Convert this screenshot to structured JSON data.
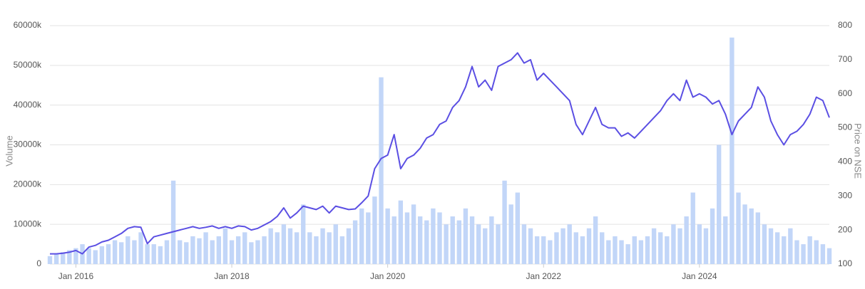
{
  "chart_data": {
    "type": "bar-line",
    "x": [
      "2015-09",
      "2015-10",
      "2015-11",
      "2015-12",
      "2016-01",
      "2016-02",
      "2016-03",
      "2016-04",
      "2016-05",
      "2016-06",
      "2016-07",
      "2016-08",
      "2016-09",
      "2016-10",
      "2016-11",
      "2016-12",
      "2017-01",
      "2017-02",
      "2017-03",
      "2017-04",
      "2017-05",
      "2017-06",
      "2017-07",
      "2017-08",
      "2017-09",
      "2017-10",
      "2017-11",
      "2017-12",
      "2018-01",
      "2018-02",
      "2018-03",
      "2018-04",
      "2018-05",
      "2018-06",
      "2018-07",
      "2018-08",
      "2018-09",
      "2018-10",
      "2018-11",
      "2018-12",
      "2019-01",
      "2019-02",
      "2019-03",
      "2019-04",
      "2019-05",
      "2019-06",
      "2019-07",
      "2019-08",
      "2019-09",
      "2019-10",
      "2019-11",
      "2019-12",
      "2020-01",
      "2020-02",
      "2020-03",
      "2020-04",
      "2020-05",
      "2020-06",
      "2020-07",
      "2020-08",
      "2020-09",
      "2020-10",
      "2020-11",
      "2020-12",
      "2021-01",
      "2021-02",
      "2021-03",
      "2021-04",
      "2021-05",
      "2021-06",
      "2021-07",
      "2021-08",
      "2021-09",
      "2021-10",
      "2021-11",
      "2021-12",
      "2022-01",
      "2022-02",
      "2022-03",
      "2022-04",
      "2022-05",
      "2022-06",
      "2022-07",
      "2022-08",
      "2022-09",
      "2022-10",
      "2022-11",
      "2022-12",
      "2023-01",
      "2023-02",
      "2023-03",
      "2023-04",
      "2023-05",
      "2023-06",
      "2023-07",
      "2023-08",
      "2023-09",
      "2023-10",
      "2023-11",
      "2023-12",
      "2024-01",
      "2024-02",
      "2024-03",
      "2024-04",
      "2024-05",
      "2024-06",
      "2024-07",
      "2024-08",
      "2024-09",
      "2024-10",
      "2024-11",
      "2024-12",
      "2025-01",
      "2025-02",
      "2025-03",
      "2025-04",
      "2025-05",
      "2025-06",
      "2025-07",
      "2025-08",
      "2025-09"
    ],
    "series": [
      {
        "name": "Volume",
        "type": "bar",
        "color": "#c2d6f8",
        "values": [
          2000,
          2500,
          3000,
          3500,
          4000,
          5000,
          4000,
          3500,
          4500,
          5000,
          6000,
          5500,
          7000,
          6000,
          8000,
          5000,
          5000,
          4500,
          6000,
          21000,
          6000,
          5500,
          7000,
          6500,
          8000,
          6000,
          7000,
          9000,
          6000,
          7000,
          8000,
          5500,
          6000,
          7000,
          9000,
          8000,
          10000,
          9000,
          8000,
          15000,
          8000,
          7000,
          9000,
          8000,
          10000,
          7000,
          9000,
          11000,
          14000,
          13000,
          17000,
          47000,
          14000,
          12000,
          16000,
          13000,
          15000,
          12000,
          11000,
          14000,
          13000,
          10000,
          12000,
          11000,
          14000,
          12000,
          10000,
          9000,
          12000,
          10000,
          21000,
          15000,
          18000,
          10000,
          9000,
          7000,
          7000,
          6000,
          8000,
          9000,
          10000,
          8000,
          7000,
          9000,
          12000,
          8000,
          6000,
          7000,
          6000,
          5000,
          7000,
          6000,
          7000,
          9000,
          8000,
          7000,
          10000,
          9000,
          12000,
          18000,
          10000,
          9000,
          14000,
          30000,
          12000,
          57000,
          18000,
          15000,
          14000,
          13000,
          10000,
          9000,
          8000,
          7000,
          9000,
          6000,
          5000,
          7000,
          6000,
          5000,
          4000
        ]
      },
      {
        "name": "Price on NSE",
        "type": "line",
        "axis": "y2",
        "color": "#5b4fe3",
        "values": [
          130,
          130,
          132,
          135,
          140,
          130,
          150,
          155,
          165,
          170,
          180,
          190,
          205,
          210,
          208,
          160,
          180,
          185,
          190,
          195,
          200,
          205,
          210,
          205,
          208,
          212,
          205,
          210,
          205,
          212,
          210,
          200,
          205,
          215,
          225,
          240,
          265,
          235,
          250,
          270,
          265,
          260,
          270,
          250,
          270,
          265,
          260,
          262,
          280,
          300,
          380,
          410,
          420,
          480,
          380,
          410,
          420,
          440,
          470,
          480,
          510,
          520,
          560,
          580,
          620,
          680,
          620,
          640,
          610,
          680,
          690,
          700,
          720,
          690,
          700,
          640,
          660,
          640,
          620,
          600,
          580,
          510,
          480,
          520,
          560,
          510,
          500,
          500,
          475,
          485,
          470,
          490,
          510,
          530,
          550,
          580,
          600,
          580,
          640,
          590,
          600,
          590,
          570,
          580,
          540,
          480,
          520,
          540,
          560,
          620,
          590,
          520,
          480,
          450,
          480,
          490,
          510,
          540,
          590,
          580,
          530
        ]
      }
    ],
    "xlim": [
      "2015-09",
      "2025-09"
    ],
    "xticks": [
      {
        "value": "2016-01",
        "label": "Jan 2016"
      },
      {
        "value": "2018-01",
        "label": "Jan 2018"
      },
      {
        "value": "2020-01",
        "label": "Jan 2020"
      },
      {
        "value": "2022-01",
        "label": "Jan 2022"
      },
      {
        "value": "2024-01",
        "label": "Jan 2024"
      }
    ],
    "ylabel": "Volume",
    "ylim": [
      0,
      60000
    ],
    "yticks": [
      0,
      {
        "value": 10000,
        "label": "10000k"
      },
      {
        "value": 20000,
        "label": "20000k"
      },
      {
        "value": 30000,
        "label": "30000k"
      },
      {
        "value": 40000,
        "label": "40000k"
      },
      {
        "value": 50000,
        "label": "50000k"
      },
      {
        "value": 60000,
        "label": "60000k"
      }
    ],
    "y2label": "Price on NSE",
    "y2lim": [
      100,
      800
    ],
    "y2ticks": [
      100,
      200,
      300,
      400,
      500,
      600,
      700,
      800
    ],
    "grid": true
  }
}
